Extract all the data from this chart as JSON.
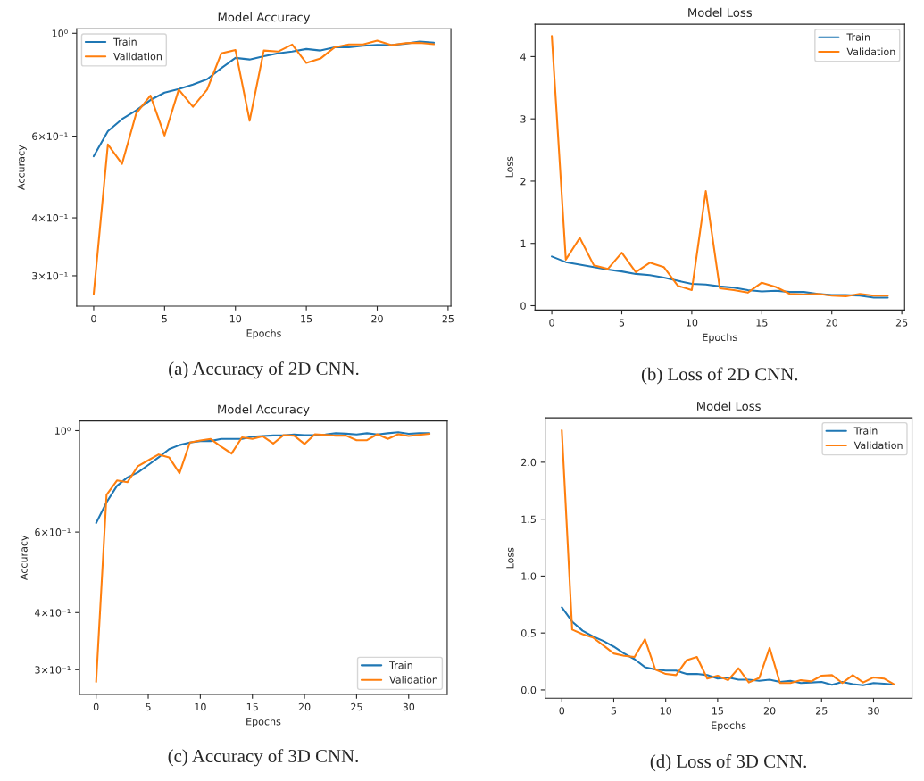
{
  "chart_data": [
    {
      "type": "line",
      "title": "Model Accuracy",
      "xlabel": "Epochs",
      "ylabel": "Accuracy",
      "log": "y",
      "x": [
        0,
        1,
        2,
        3,
        4,
        5,
        6,
        7,
        8,
        9,
        10,
        11,
        12,
        13,
        14,
        15,
        16,
        17,
        18,
        19,
        20,
        21,
        22,
        23,
        24
      ],
      "xlim": [
        -1.2,
        25.2
      ],
      "xticks": [
        0,
        5,
        10,
        15,
        20,
        25
      ],
      "ylim": [
        0.258,
        1.022
      ],
      "yticks": [
        {
          "value": 0.3,
          "label": "3×10⁻¹"
        },
        {
          "value": 0.4,
          "label": "4×10⁻¹"
        },
        {
          "value": 0.6,
          "label": "6×10⁻¹"
        },
        {
          "value": 1,
          "label": "10⁰"
        }
      ],
      "series": [
        {
          "name": "Train",
          "color": "#1f77b4",
          "values": [
            0.543,
            0.615,
            0.653,
            0.682,
            0.718,
            0.745,
            0.758,
            0.775,
            0.796,
            0.841,
            0.885,
            0.878,
            0.892,
            0.905,
            0.913,
            0.925,
            0.918,
            0.933,
            0.933,
            0.94,
            0.944,
            0.943,
            0.95,
            0.96,
            0.954
          ]
        },
        {
          "name": "Validation",
          "color": "#ff7f0e",
          "values": [
            0.274,
            0.576,
            0.523,
            0.672,
            0.734,
            0.602,
            0.756,
            0.694,
            0.756,
            0.905,
            0.92,
            0.648,
            0.918,
            0.913,
            0.946,
            0.863,
            0.882,
            0.933,
            0.946,
            0.946,
            0.964,
            0.943,
            0.952,
            0.954,
            0.947
          ]
        }
      ],
      "legend": "top left",
      "grid": false,
      "annotations": [
        "(a) Accuracy of 2D CNN."
      ]
    },
    {
      "type": "line",
      "title": "Model Loss",
      "xlabel": "Epochs",
      "ylabel": "Loss",
      "x": [
        0,
        1,
        2,
        3,
        4,
        5,
        6,
        7,
        8,
        9,
        10,
        11,
        12,
        13,
        14,
        15,
        16,
        17,
        18,
        19,
        20,
        21,
        22,
        23,
        24
      ],
      "xlim": [
        -1.2,
        25.2
      ],
      "xticks": [
        0,
        5,
        10,
        15,
        20,
        25
      ],
      "ylim": [
        -0.07,
        4.52
      ],
      "yticks": [
        0,
        1,
        2,
        3,
        4
      ],
      "series": [
        {
          "name": "Train",
          "color": "#1f77b4",
          "values": [
            0.79,
            0.7,
            0.66,
            0.62,
            0.58,
            0.55,
            0.51,
            0.49,
            0.45,
            0.4,
            0.35,
            0.34,
            0.31,
            0.29,
            0.25,
            0.23,
            0.24,
            0.22,
            0.22,
            0.19,
            0.17,
            0.17,
            0.16,
            0.13,
            0.13
          ]
        },
        {
          "name": "Validation",
          "color": "#ff7f0e",
          "values": [
            4.33,
            0.74,
            1.09,
            0.65,
            0.59,
            0.85,
            0.54,
            0.69,
            0.62,
            0.32,
            0.25,
            1.84,
            0.28,
            0.25,
            0.21,
            0.37,
            0.3,
            0.19,
            0.18,
            0.19,
            0.16,
            0.15,
            0.19,
            0.16,
            0.16
          ]
        }
      ],
      "legend": "top right",
      "grid": false,
      "annotations": [
        "(b) Loss of 2D CNN."
      ]
    },
    {
      "type": "line",
      "title": "Model Accuracy",
      "xlabel": "Epochs",
      "ylabel": "Accuracy",
      "log": "y",
      "x": [
        0,
        1,
        2,
        3,
        4,
        5,
        6,
        7,
        8,
        9,
        10,
        11,
        12,
        13,
        14,
        15,
        16,
        17,
        18,
        19,
        20,
        21,
        22,
        23,
        24,
        25,
        26,
        27,
        28,
        29,
        30,
        31,
        32
      ],
      "xlim": [
        -1.6,
        33.7
      ],
      "xticks": [
        0,
        5,
        10,
        15,
        20,
        25,
        30
      ],
      "ylim": [
        0.265,
        1.05
      ],
      "yticks": [
        {
          "value": 0.3,
          "label": "3×10⁻¹"
        },
        {
          "value": 0.4,
          "label": "4×10⁻¹"
        },
        {
          "value": 0.6,
          "label": "6×10⁻¹"
        },
        {
          "value": 1,
          "label": "10⁰"
        }
      ],
      "series": [
        {
          "name": "Train",
          "color": "#1f77b4",
          "values": [
            0.628,
            0.697,
            0.757,
            0.79,
            0.81,
            0.841,
            0.874,
            0.911,
            0.93,
            0.942,
            0.949,
            0.949,
            0.959,
            0.959,
            0.959,
            0.97,
            0.973,
            0.976,
            0.976,
            0.981,
            0.978,
            0.978,
            0.981,
            0.987,
            0.985,
            0.981,
            0.987,
            0.981,
            0.987,
            0.992,
            0.984,
            0.987,
            0.987
          ]
        },
        {
          "name": "Validation",
          "color": "#ff7f0e",
          "values": [
            0.282,
            0.724,
            0.778,
            0.771,
            0.836,
            0.861,
            0.887,
            0.874,
            0.807,
            0.942,
            0.952,
            0.959,
            0.923,
            0.891,
            0.967,
            0.959,
            0.972,
            0.937,
            0.978,
            0.975,
            0.935,
            0.982,
            0.979,
            0.975,
            0.975,
            0.953,
            0.953,
            0.982,
            0.959,
            0.982,
            0.973,
            0.979,
            0.984
          ]
        }
      ],
      "legend": "bottom right",
      "grid": false,
      "annotations": [
        "(c) Accuracy of 3D CNN."
      ]
    },
    {
      "type": "line",
      "title": "Model Loss",
      "xlabel": "Epochs",
      "ylabel": "Loss",
      "x": [
        0,
        1,
        2,
        3,
        4,
        5,
        6,
        7,
        8,
        9,
        10,
        11,
        12,
        13,
        14,
        15,
        16,
        17,
        18,
        19,
        20,
        21,
        22,
        23,
        24,
        25,
        26,
        27,
        28,
        29,
        30,
        31,
        32
      ],
      "xlim": [
        -1.6,
        33.7
      ],
      "xticks": [
        0,
        5,
        10,
        15,
        20,
        25,
        30
      ],
      "ylim": [
        -0.073,
        2.39
      ],
      "yticks": [
        {
          "value": 0,
          "label": "0.0"
        },
        {
          "value": 0.5,
          "label": "0.5"
        },
        {
          "value": 1,
          "label": "1.0"
        },
        {
          "value": 1.5,
          "label": "1.5"
        },
        {
          "value": 2,
          "label": "2.0"
        }
      ],
      "series": [
        {
          "name": "Train",
          "color": "#1f77b4",
          "values": [
            0.725,
            0.6,
            0.52,
            0.47,
            0.43,
            0.38,
            0.32,
            0.27,
            0.2,
            0.18,
            0.17,
            0.17,
            0.14,
            0.14,
            0.13,
            0.1,
            0.11,
            0.09,
            0.09,
            0.08,
            0.09,
            0.07,
            0.08,
            0.06,
            0.065,
            0.07,
            0.045,
            0.07,
            0.05,
            0.04,
            0.06,
            0.055,
            0.047
          ]
        },
        {
          "name": "Validation",
          "color": "#ff7f0e",
          "values": [
            2.28,
            0.53,
            0.49,
            0.46,
            0.39,
            0.32,
            0.3,
            0.29,
            0.445,
            0.18,
            0.14,
            0.13,
            0.26,
            0.29,
            0.1,
            0.125,
            0.085,
            0.19,
            0.065,
            0.105,
            0.37,
            0.06,
            0.06,
            0.085,
            0.075,
            0.125,
            0.13,
            0.06,
            0.13,
            0.065,
            0.11,
            0.1,
            0.047
          ]
        }
      ],
      "legend": "top right",
      "grid": false,
      "annotations": [
        "(d) Loss of 3D CNN."
      ]
    }
  ]
}
